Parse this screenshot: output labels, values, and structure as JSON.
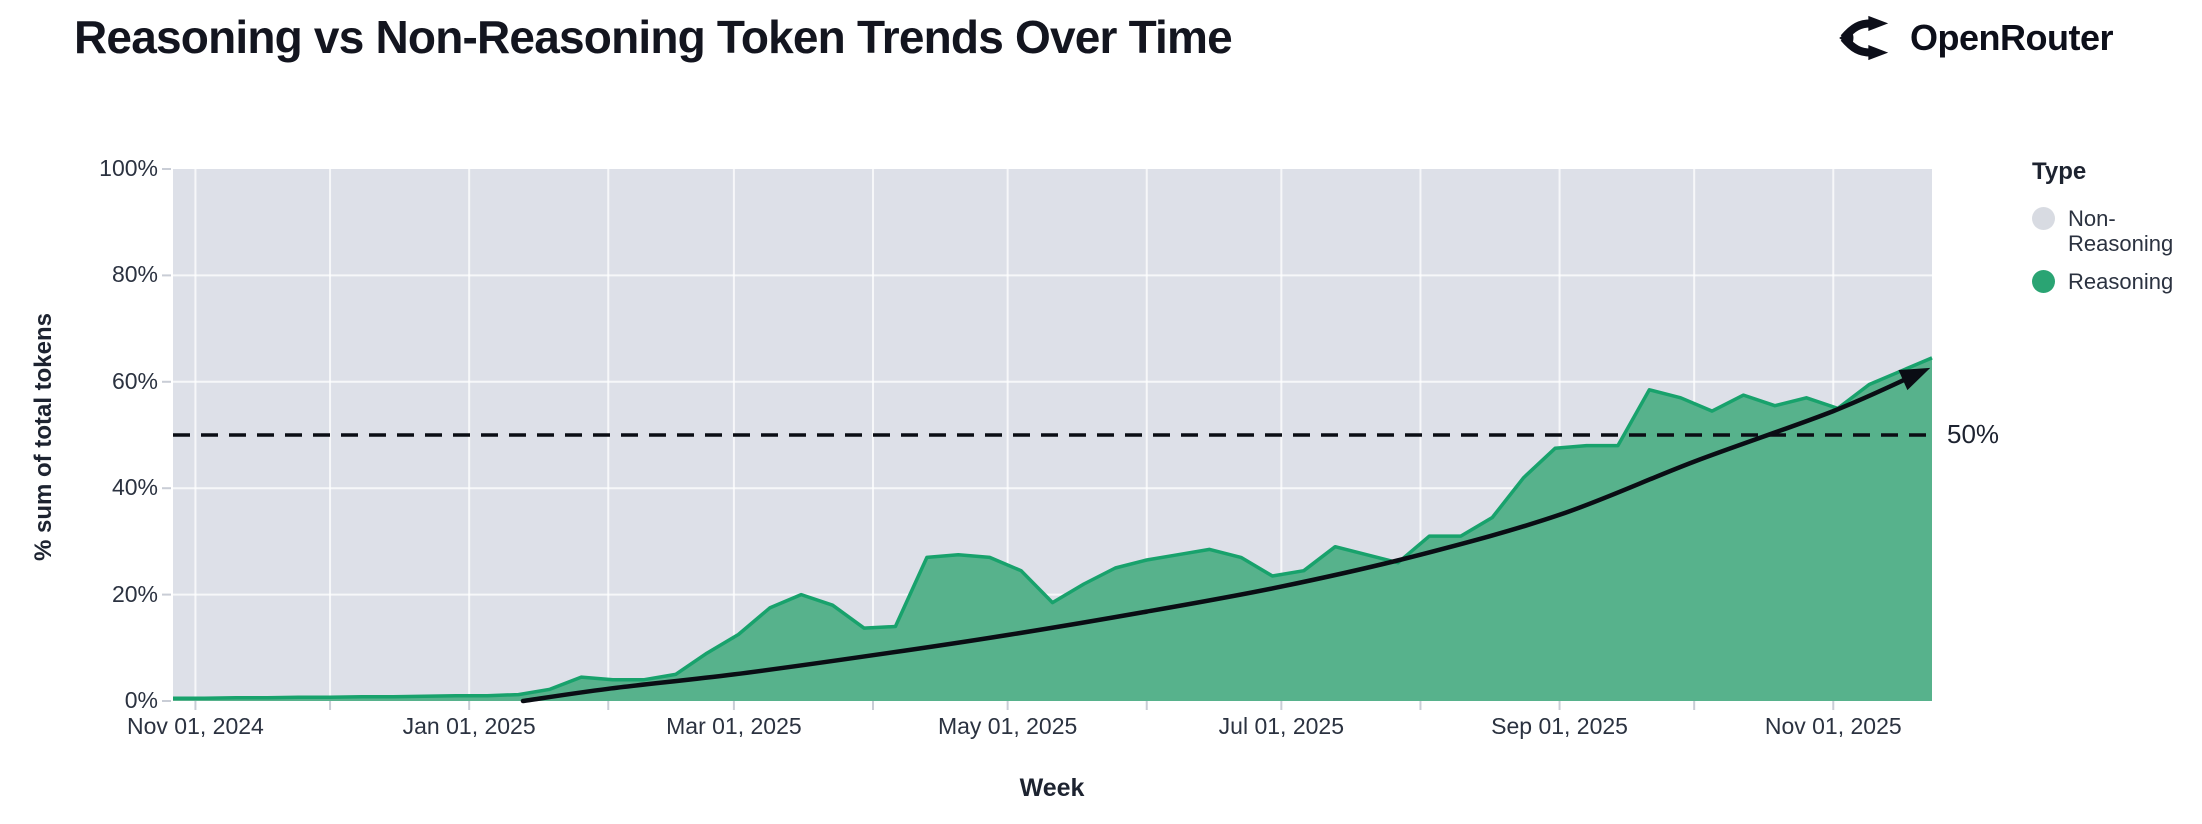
{
  "header": {
    "title": "Reasoning vs Non-Reasoning Token Trends Over Time",
    "brand": "OpenRouter"
  },
  "colors": {
    "reasoning_fill": "#57b28c",
    "reasoning_stroke": "#18a26c",
    "non_reasoning_gray": "#d8dbe2",
    "plot_background": "#dde0e8",
    "grid_line": "#ffffff",
    "tick_mark": "#c9cdd6",
    "axis_text": "#2b3240",
    "annotation_black": "#0a0d14",
    "legend_green_dot": "#2aa473"
  },
  "chart_data": {
    "type": "area",
    "stacked_percent": true,
    "title": "Reasoning vs Non-Reasoning Token Trends Over Time",
    "xlabel": "Week",
    "ylabel": "% sum of total tokens",
    "ylim": [
      0,
      100
    ],
    "grid": "white lines on shaded panel, monthly vertical + 20% horizontal",
    "legend_position": "right",
    "x_domain": [
      "2024-10-27",
      "2025-11-23"
    ],
    "y_ticks": [
      {
        "pct": 0,
        "label": "0%"
      },
      {
        "pct": 20,
        "label": "20%"
      },
      {
        "pct": 40,
        "label": "40%"
      },
      {
        "pct": 60,
        "label": "60%"
      },
      {
        "pct": 80,
        "label": "80%"
      },
      {
        "pct": 100,
        "label": "100%"
      }
    ],
    "x_ticks": [
      {
        "date": "2024-11-01",
        "label": "Nov 01, 2024"
      },
      {
        "date": "2025-01-01",
        "label": "Jan 01, 2025"
      },
      {
        "date": "2025-03-01",
        "label": "Mar 01, 2025"
      },
      {
        "date": "2025-05-01",
        "label": "May 01, 2025"
      },
      {
        "date": "2025-07-01",
        "label": "Jul 01, 2025"
      },
      {
        "date": "2025-09-01",
        "label": "Sep 01, 2025"
      },
      {
        "date": "2025-11-01",
        "label": "Nov 01, 2025"
      }
    ],
    "month_gridlines": [
      "2024-11-01",
      "2024-12-01",
      "2025-01-01",
      "2025-02-01",
      "2025-03-01",
      "2025-04-01",
      "2025-05-01",
      "2025-06-01",
      "2025-07-01",
      "2025-08-01",
      "2025-09-01",
      "2025-10-01",
      "2025-11-01"
    ],
    "weeks": [
      "2024-10-27",
      "2024-11-03",
      "2024-11-10",
      "2024-11-17",
      "2024-11-24",
      "2024-12-01",
      "2024-12-08",
      "2024-12-15",
      "2024-12-22",
      "2024-12-29",
      "2025-01-05",
      "2025-01-12",
      "2025-01-19",
      "2025-01-26",
      "2025-02-02",
      "2025-02-09",
      "2025-02-16",
      "2025-02-23",
      "2025-03-02",
      "2025-03-09",
      "2025-03-16",
      "2025-03-23",
      "2025-03-30",
      "2025-04-06",
      "2025-04-13",
      "2025-04-20",
      "2025-04-27",
      "2025-05-04",
      "2025-05-11",
      "2025-05-18",
      "2025-05-25",
      "2025-06-01",
      "2025-06-08",
      "2025-06-15",
      "2025-06-22",
      "2025-06-29",
      "2025-07-06",
      "2025-07-13",
      "2025-07-20",
      "2025-07-27",
      "2025-08-03",
      "2025-08-10",
      "2025-08-17",
      "2025-08-24",
      "2025-08-31",
      "2025-09-07",
      "2025-09-14",
      "2025-09-21",
      "2025-09-28",
      "2025-10-05",
      "2025-10-12",
      "2025-10-19",
      "2025-10-26",
      "2025-11-02",
      "2025-11-09",
      "2025-11-16",
      "2025-11-23"
    ],
    "series": [
      {
        "name": "Non-Reasoning",
        "color": "#d8dbe2",
        "values": [
          99.5,
          99.5,
          99.4,
          99.4,
          99.3,
          99.3,
          99.2,
          99.2,
          99.1,
          99.0,
          99.0,
          98.8,
          97.8,
          95.5,
          96.0,
          96.0,
          95.0,
          91.0,
          87.5,
          82.5,
          80.0,
          82.0,
          86.3,
          86.0,
          73.0,
          72.5,
          73.0,
          75.5,
          81.5,
          78.0,
          75.0,
          73.5,
          72.5,
          71.5,
          73.0,
          76.5,
          75.5,
          71.0,
          72.5,
          74.0,
          69.0,
          69.0,
          65.5,
          58.0,
          52.5,
          52.0,
          52.0,
          41.5,
          43.0,
          45.5,
          42.5,
          44.5,
          43.0,
          45.0,
          40.5,
          38.0,
          35.5
        ]
      },
      {
        "name": "Reasoning",
        "color": "#57b28c",
        "values": [
          0.5,
          0.5,
          0.6,
          0.6,
          0.7,
          0.7,
          0.8,
          0.8,
          0.9,
          1.0,
          1.0,
          1.2,
          2.2,
          4.5,
          4.0,
          4.0,
          5.0,
          9.0,
          12.5,
          17.5,
          20.0,
          18.0,
          13.7,
          14.0,
          27.0,
          27.5,
          27.0,
          24.5,
          18.5,
          22.0,
          25.0,
          26.5,
          27.5,
          28.5,
          27.0,
          23.5,
          24.5,
          29.0,
          27.5,
          26.0,
          31.0,
          31.0,
          34.5,
          42.0,
          47.5,
          48.0,
          48.0,
          58.5,
          57.0,
          54.5,
          57.5,
          55.5,
          57.0,
          55.0,
          59.5,
          62.0,
          64.5
        ]
      }
    ],
    "legend": {
      "title": "Type",
      "items": [
        {
          "label": "Non-Reasoning",
          "color": "#d8dbe2"
        },
        {
          "label": "Reasoning",
          "color": "#2aa473"
        }
      ]
    },
    "annotations": {
      "hline": {
        "pct": 50,
        "label": "50%",
        "style": "dashed"
      },
      "trend_arrow": {
        "description": "black curved arrow showing accelerating reasoning share",
        "points": [
          [
            "2025-01-13",
            0
          ],
          [
            "2025-02-01",
            2.3
          ],
          [
            "2025-03-01",
            5.0
          ],
          [
            "2025-04-01",
            8.6
          ],
          [
            "2025-05-01",
            12.4
          ],
          [
            "2025-06-01",
            16.8
          ],
          [
            "2025-07-01",
            21.5
          ],
          [
            "2025-08-01",
            27.5
          ],
          [
            "2025-09-01",
            35.0
          ],
          [
            "2025-10-01",
            45.0
          ],
          [
            "2025-11-01",
            54.5
          ],
          [
            "2025-11-21",
            62.0
          ]
        ]
      }
    }
  }
}
